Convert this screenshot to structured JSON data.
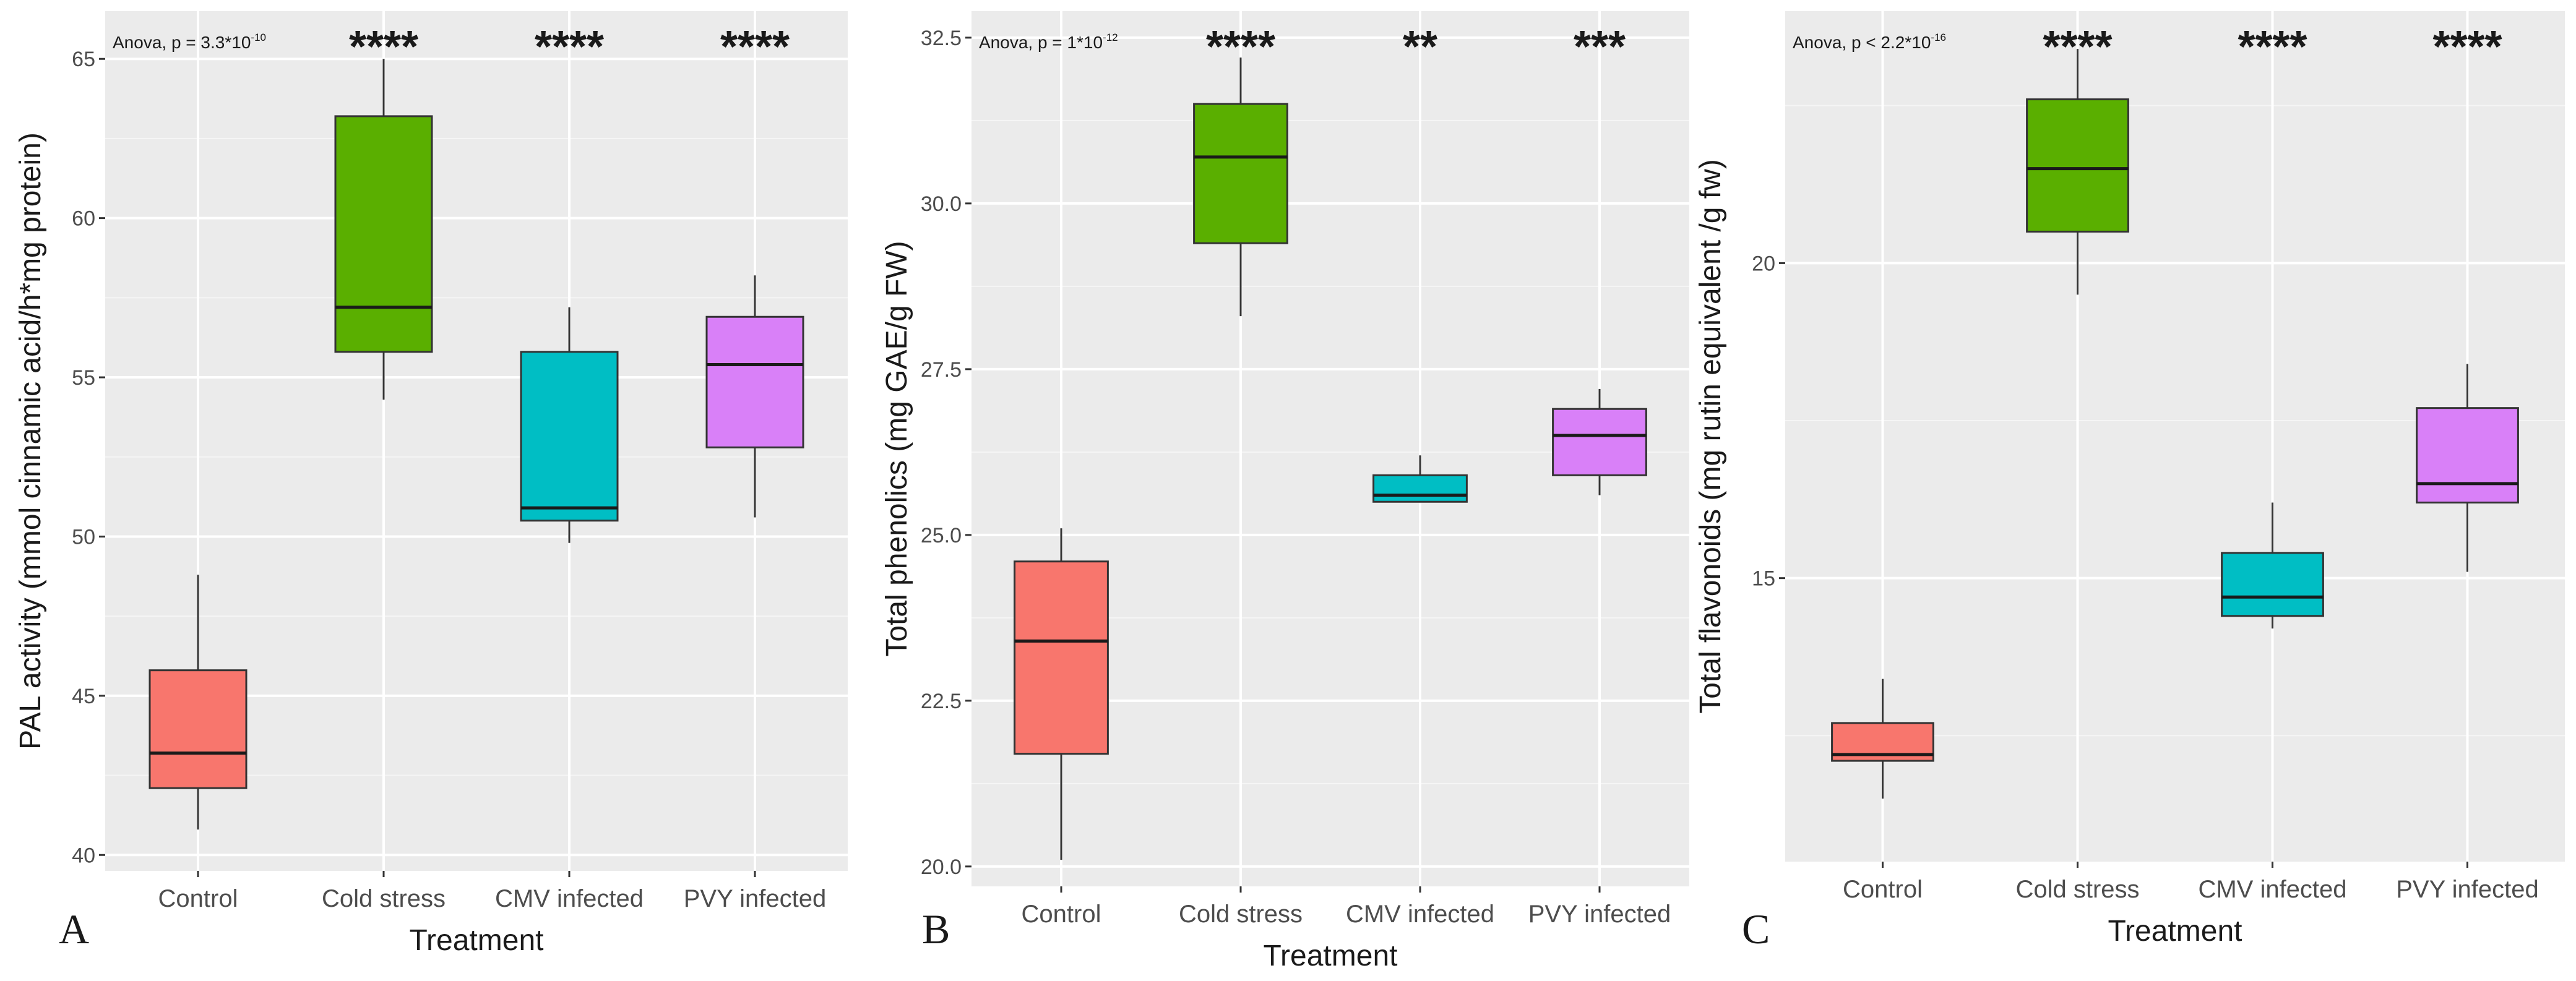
{
  "colors": {
    "Control": "#f8766d",
    "Cold stress": "#5aaf00",
    "CMV infected": "#00bec4",
    "PVY infected": "#d980f8"
  },
  "chart_data": [
    {
      "type": "boxplot",
      "panel": "A",
      "xlabel": "Treatment",
      "ylabel": "PAL activity (mmol cinnamic acid/h*mg protein)",
      "ylim": [
        39.5,
        66.5
      ],
      "yticks": [
        40,
        45,
        50,
        55,
        60,
        65
      ],
      "ytick_labels": [
        "40",
        "45",
        "50",
        "55",
        "60",
        "65"
      ],
      "anova": {
        "prefix": "Anova, p = 3.3*10",
        "exponent": "-10"
      },
      "categories": [
        "Control",
        "Cold stress",
        "CMV infected",
        "PVY infected"
      ],
      "boxes": [
        {
          "min": 40.8,
          "q1": 42.1,
          "median": 43.2,
          "q3": 45.8,
          "max": 48.8
        },
        {
          "min": 54.3,
          "q1": 55.8,
          "median": 57.2,
          "q3": 63.2,
          "max": 65.0
        },
        {
          "min": 49.8,
          "q1": 50.5,
          "median": 50.9,
          "q3": 55.8,
          "max": 57.2
        },
        {
          "min": 50.6,
          "q1": 52.8,
          "median": 55.4,
          "q3": 56.9,
          "max": 58.2
        }
      ],
      "significance": [
        "",
        "****",
        "****",
        "****"
      ]
    },
    {
      "type": "boxplot",
      "panel": "B",
      "xlabel": "Treatment",
      "ylabel": "Total phenolics (mg GAE/g FW)",
      "ylim": [
        19.7,
        32.9
      ],
      "yticks": [
        20,
        22.5,
        25,
        27.5,
        30,
        32.5
      ],
      "ytick_labels": [
        "20.0",
        "22.5",
        "25.0",
        "27.5",
        "30.0",
        "32.5"
      ],
      "anova": {
        "prefix": "Anova, p = 1*10",
        "exponent": "-12"
      },
      "categories": [
        "Control",
        "Cold stress",
        "CMV infected",
        "PVY infected"
      ],
      "boxes": [
        {
          "min": 20.1,
          "q1": 21.7,
          "median": 23.4,
          "q3": 24.6,
          "max": 25.1
        },
        {
          "min": 28.3,
          "q1": 29.4,
          "median": 30.7,
          "q3": 31.5,
          "max": 32.2
        },
        {
          "min": 25.5,
          "q1": 25.5,
          "median": 25.6,
          "q3": 25.9,
          "max": 26.2
        },
        {
          "min": 25.6,
          "q1": 25.9,
          "median": 26.5,
          "q3": 26.9,
          "max": 27.2
        }
      ],
      "significance": [
        "",
        "****",
        "**",
        "***"
      ]
    },
    {
      "type": "boxplot",
      "panel": "C",
      "xlabel": "Treatment",
      "ylabel": "Total flavonoids (mg rutin equivalent /g fw)",
      "ylim": [
        10.5,
        24.0
      ],
      "yticks": [
        15,
        20
      ],
      "ytick_labels": [
        "15",
        "20"
      ],
      "anova": {
        "prefix": "Anova, p < 2.2*10",
        "exponent": "-16"
      },
      "categories": [
        "Control",
        "Cold stress",
        "CMV infected",
        "PVY infected"
      ],
      "boxes": [
        {
          "min": 11.5,
          "q1": 12.1,
          "median": 12.2,
          "q3": 12.7,
          "max": 13.4
        },
        {
          "min": 19.5,
          "q1": 20.5,
          "median": 21.5,
          "q3": 22.6,
          "max": 23.4
        },
        {
          "min": 14.2,
          "q1": 14.4,
          "median": 14.7,
          "q3": 15.4,
          "max": 16.2
        },
        {
          "min": 15.1,
          "q1": 16.2,
          "median": 16.5,
          "q3": 17.7,
          "max": 18.4
        }
      ],
      "significance": [
        "",
        "****",
        "****",
        "****"
      ]
    }
  ]
}
